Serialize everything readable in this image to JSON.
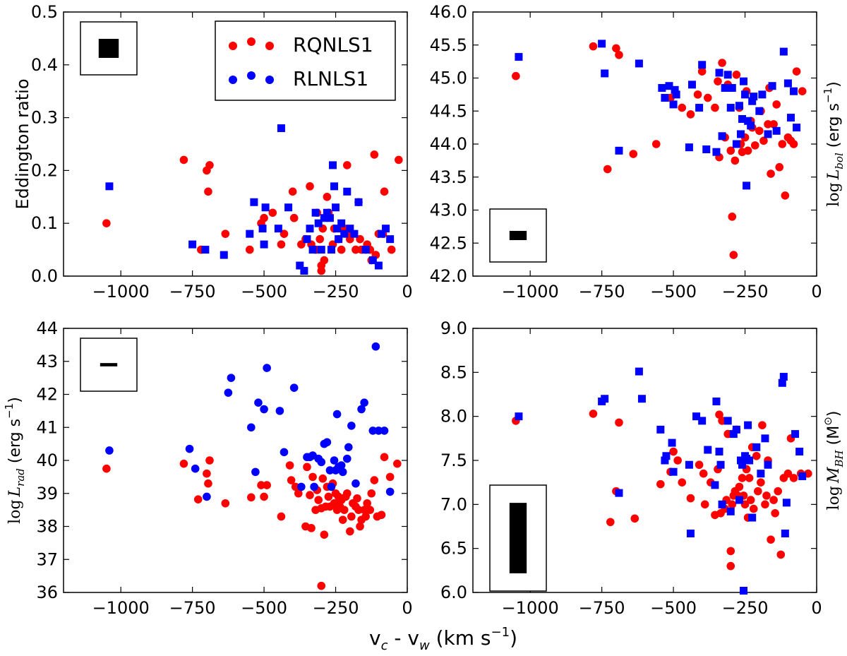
{
  "colors": {
    "rq": "#ff0000",
    "rl": "#0000ff",
    "axis": "#000000"
  },
  "xlabel_main": "v",
  "xlabel_sub1": "c",
  "xlabel_mid": " - v",
  "xlabel_sub2": "w",
  "xlabel_unit": "  (km s",
  "xlabel_exp": "−1",
  "xlabel_close": ")",
  "chart_data": [
    {
      "type": "scatter",
      "id": "eddington",
      "ylabel": "Eddington ratio",
      "xlim": [
        -1200,
        0
      ],
      "ylim": [
        0.0,
        0.5
      ],
      "xticks": [
        -1000,
        -750,
        -500,
        -250,
        0
      ],
      "yticks": [
        0.0,
        0.1,
        0.2,
        0.3,
        0.4,
        0.5
      ],
      "yfmt": 1,
      "legend": {
        "placement": "top-right",
        "entries": [
          "RQNLS1",
          "RLNLS1"
        ]
      },
      "error_box": {
        "placement": "top-left",
        "half_x": 35,
        "half_y": 0.018
      },
      "series": [
        {
          "name": "RQNLS1",
          "marker": "circle",
          "color": "#ff0000",
          "x": [
            -1050,
            -780,
            -720,
            -700,
            -695,
            -690,
            -635,
            -550,
            -510,
            -500,
            -470,
            -440,
            -430,
            -400,
            -395,
            -370,
            -355,
            -340,
            -335,
            -320,
            -315,
            -305,
            -300,
            -300,
            -295,
            -290,
            -280,
            -275,
            -260,
            -255,
            -240,
            -230,
            -220,
            -210,
            -200,
            -195,
            -180,
            -170,
            -165,
            -160,
            -145,
            -140,
            -130,
            -125,
            -115,
            -110,
            -100,
            -85,
            -80,
            -55,
            -30
          ],
          "y": [
            0.1,
            0.22,
            0.05,
            0.2,
            0.16,
            0.21,
            0.08,
            0.05,
            0.1,
            0.11,
            0.12,
            0.06,
            0.08,
            0.16,
            0.11,
            0.06,
            0.07,
            0.17,
            0.06,
            0.05,
            0.12,
            0.07,
            0.02,
            0.01,
            0.09,
            0.03,
            0.15,
            0.12,
            0.06,
            0.09,
            0.07,
            0.05,
            0.09,
            0.21,
            0.07,
            0.08,
            0.05,
            0.14,
            0.07,
            0.05,
            0.05,
            0.06,
            0.05,
            0.03,
            0.23,
            0.04,
            0.08,
            0.08,
            0.16,
            0.05,
            0.22
          ]
        },
        {
          "name": "RLNLS1",
          "marker": "square",
          "color": "#0000ff",
          "x": [
            -1040,
            -750,
            -705,
            -640,
            -550,
            -535,
            -505,
            -500,
            -495,
            -450,
            -440,
            -415,
            -375,
            -360,
            -350,
            -340,
            -330,
            -320,
            -310,
            -300,
            -290,
            -280,
            -270,
            -265,
            -260,
            -255,
            -250,
            -245,
            -240,
            -230,
            -220,
            -210,
            -200,
            -185,
            -170,
            -145,
            -120,
            -100,
            -90,
            -75,
            -60
          ],
          "y": [
            0.17,
            0.06,
            0.05,
            0.04,
            0.08,
            0.14,
            0.09,
            0.06,
            0.13,
            0.09,
            0.28,
            0.13,
            0.02,
            0.01,
            0.07,
            0.09,
            0.05,
            0.12,
            0.1,
            0.05,
            0.11,
            0.12,
            0.11,
            0.05,
            0.21,
            0.17,
            0.13,
            0.09,
            0.07,
            0.1,
            0.08,
            0.16,
            0.09,
            0.08,
            0.14,
            0.05,
            0.03,
            0.02,
            0.08,
            0.09,
            0.07
          ]
        }
      ]
    },
    {
      "type": "scatter",
      "id": "lbol",
      "ylabel": "log",
      "ylabel_var": "L",
      "ylabel_sub": "bol",
      "ylabel_unit": " (erg s",
      "ylabel_exp": "−1",
      "ylabel_close": ")",
      "xlim": [
        -1200,
        0
      ],
      "ylim": [
        42.0,
        46.0
      ],
      "xticks": [
        -1000,
        -750,
        -500,
        -250,
        0
      ],
      "yticks": [
        42.0,
        42.5,
        43.0,
        43.5,
        44.0,
        44.5,
        45.0,
        45.5,
        46.0
      ],
      "yfmt": 1,
      "error_box": {
        "placement": "bottom-left",
        "half_x": 30,
        "half_y": 0.07
      },
      "series": [
        {
          "name": "RQNLS1",
          "marker": "circle",
          "color": "#ff0000",
          "x": [
            -1050,
            -780,
            -730,
            -700,
            -690,
            -640,
            -560,
            -510,
            -470,
            -440,
            -415,
            -400,
            -380,
            -355,
            -345,
            -340,
            -330,
            -320,
            -310,
            -300,
            -295,
            -290,
            -285,
            -280,
            -270,
            -265,
            -260,
            -250,
            -245,
            -240,
            -230,
            -225,
            -215,
            -200,
            -195,
            -185,
            -170,
            -165,
            -160,
            -150,
            -140,
            -130,
            -120,
            -110,
            -100,
            -90,
            -80,
            -70,
            -50
          ],
          "y": [
            45.03,
            45.48,
            43.62,
            45.45,
            45.35,
            43.85,
            44.0,
            44.7,
            44.55,
            44.45,
            44.75,
            45.1,
            44.7,
            44.55,
            44.95,
            43.8,
            45.23,
            44.1,
            44.9,
            43.9,
            42.9,
            42.32,
            43.75,
            45.05,
            44.55,
            44.0,
            43.88,
            44.1,
            44.8,
            43.9,
            44.35,
            44.25,
            43.98,
            44.2,
            44.5,
            44.05,
            44.3,
            44.85,
            43.55,
            44.3,
            44.6,
            43.65,
            44.0,
            43.22,
            44.1,
            44.05,
            44.0,
            45.1,
            44.8
          ]
        },
        {
          "name": "RLNLS1",
          "marker": "square",
          "color": "#0000ff",
          "x": [
            -1040,
            -750,
            -740,
            -690,
            -620,
            -540,
            -530,
            -515,
            -500,
            -495,
            -490,
            -445,
            -435,
            -410,
            -400,
            -385,
            -350,
            -340,
            -330,
            -320,
            -310,
            -300,
            -295,
            -280,
            -270,
            -265,
            -260,
            -255,
            -250,
            -245,
            -240,
            -230,
            -225,
            -220,
            -200,
            -190,
            -170,
            -155,
            -140,
            -115,
            -100,
            -90,
            -80,
            -70
          ],
          "y": [
            45.32,
            45.52,
            45.07,
            43.9,
            45.22,
            44.85,
            44.7,
            44.88,
            44.6,
            44.82,
            44.75,
            43.95,
            44.9,
            44.55,
            45.2,
            43.92,
            43.88,
            45.08,
            44.12,
            44.85,
            45.05,
            44.55,
            44.85,
            44.0,
            44.58,
            44.15,
            44.38,
            44.95,
            44.75,
            43.37,
            44.35,
            44.28,
            44.65,
            44.72,
            44.5,
            44.75,
            44.15,
            44.88,
            44.2,
            45.4,
            44.92,
            44.4,
            44.8,
            44.25
          ]
        }
      ]
    },
    {
      "type": "scatter",
      "id": "lrad",
      "ylabel": "log",
      "ylabel_var": "L",
      "ylabel_sub": "rad",
      "ylabel_unit": " (erg s",
      "ylabel_exp": "−1",
      "ylabel_close": ")",
      "xlim": [
        -1200,
        0
      ],
      "ylim": [
        36,
        44
      ],
      "xticks": [
        -1000,
        -750,
        -500,
        -250,
        0
      ],
      "yticks": [
        36,
        37,
        38,
        39,
        40,
        41,
        42,
        43,
        44
      ],
      "yfmt": 0,
      "error_box": {
        "placement": "top-left",
        "half_x": 30,
        "half_y": 0.05
      },
      "series": [
        {
          "name": "RQNLS1",
          "marker": "circle",
          "color": "#ff0000",
          "x": [
            -1050,
            -780,
            -730,
            -700,
            -695,
            -690,
            -635,
            -545,
            -510,
            -500,
            -490,
            -440,
            -410,
            -405,
            -390,
            -380,
            -355,
            -350,
            -340,
            -335,
            -330,
            -320,
            -315,
            -310,
            -300,
            -300,
            -295,
            -290,
            -285,
            -280,
            -275,
            -270,
            -260,
            -255,
            -250,
            -245,
            -240,
            -235,
            -230,
            -225,
            -220,
            -215,
            -210,
            -200,
            -195,
            -190,
            -180,
            -175,
            -170,
            -165,
            -160,
            -150,
            -145,
            -140,
            -130,
            -125,
            -115,
            -105,
            -90,
            -80,
            -60,
            -35
          ],
          "y": [
            39.75,
            39.9,
            38.82,
            39.6,
            39.3,
            40.0,
            38.7,
            38.88,
            39.25,
            38.9,
            39.25,
            38.3,
            39.85,
            39.4,
            39.2,
            39.0,
            38.0,
            39.8,
            38.95,
            37.95,
            39.5,
            38.5,
            39.1,
            38.8,
            38.55,
            36.2,
            39.45,
            37.75,
            38.6,
            39.2,
            38.9,
            38.6,
            39.3,
            38.7,
            39.0,
            38.5,
            38.9,
            38.6,
            38.8,
            38.2,
            38.5,
            38.9,
            39.0,
            37.85,
            38.3,
            38.7,
            38.6,
            38.85,
            38.5,
            38.0,
            38.2,
            38.5,
            38.3,
            38.7,
            38.5,
            39.0,
            39.4,
            38.3,
            38.35,
            40.1,
            39.5,
            39.9
          ]
        },
        {
          "name": "RLNLS1",
          "marker": "circle",
          "color": "#0000ff",
          "x": [
            -1040,
            -760,
            -740,
            -700,
            -625,
            -615,
            -545,
            -530,
            -520,
            -500,
            -490,
            -445,
            -430,
            -395,
            -370,
            -350,
            -340,
            -330,
            -325,
            -310,
            -300,
            -290,
            -280,
            -270,
            -265,
            -255,
            -250,
            -245,
            -240,
            -230,
            -225,
            -210,
            -205,
            -195,
            -180,
            -160,
            -150,
            -120,
            -110,
            -100,
            -80,
            -60
          ],
          "y": [
            40.3,
            40.35,
            39.75,
            38.9,
            42.05,
            42.5,
            41.0,
            39.65,
            41.75,
            41.55,
            42.8,
            41.5,
            40.25,
            42.2,
            39.2,
            40.1,
            40.1,
            40.15,
            39.2,
            40.05,
            39.95,
            40.5,
            40.55,
            39.7,
            39.2,
            40.0,
            39.7,
            41.4,
            39.8,
            39.85,
            39.65,
            40.05,
            40.4,
            41.05,
            39.3,
            41.55,
            41.75,
            40.9,
            43.45,
            40.9,
            40.9,
            39.05
          ]
        }
      ]
    },
    {
      "type": "scatter",
      "id": "mbh",
      "ylabel": "log",
      "ylabel_var": "M",
      "ylabel_sub": "BH",
      "ylabel_unit": " (M",
      "ylabel_exp": "⊙",
      "ylabel_close": ")",
      "xlim": [
        -1200,
        0
      ],
      "ylim": [
        6.0,
        9.0
      ],
      "xticks": [
        -1000,
        -750,
        -500,
        -250,
        0
      ],
      "yticks": [
        6.0,
        6.5,
        7.0,
        7.5,
        8.0,
        8.5,
        9.0
      ],
      "yfmt": 1,
      "error_box": {
        "placement": "bottom-left",
        "half_x": 30,
        "half_y": 0.4
      },
      "series": [
        {
          "name": "RQNLS1",
          "marker": "circle",
          "color": "#ff0000",
          "x": [
            -1050,
            -780,
            -720,
            -700,
            -690,
            -635,
            -545,
            -510,
            -500,
            -485,
            -470,
            -440,
            -410,
            -395,
            -390,
            -370,
            -355,
            -345,
            -340,
            -335,
            -330,
            -320,
            -315,
            -310,
            -300,
            -300,
            -295,
            -290,
            -285,
            -280,
            -275,
            -270,
            -260,
            -255,
            -250,
            -245,
            -240,
            -235,
            -230,
            -225,
            -220,
            -210,
            -205,
            -195,
            -190,
            -180,
            -175,
            -170,
            -160,
            -150,
            -145,
            -135,
            -125,
            -115,
            -100,
            -90,
            -80,
            -55,
            -30
          ],
          "y": [
            7.95,
            8.03,
            6.8,
            7.15,
            7.93,
            6.84,
            7.23,
            7.37,
            7.6,
            7.5,
            7.25,
            7.07,
            7.45,
            7.35,
            7.0,
            7.25,
            6.88,
            7.4,
            8.02,
            6.9,
            7.95,
            6.95,
            7.05,
            7.8,
            6.47,
            6.3,
            7.0,
            7.1,
            7.15,
            7.85,
            7.1,
            7.2,
            7.3,
            7.1,
            7.0,
            7.4,
            6.85,
            7.3,
            7.05,
            7.65,
            6.95,
            7.55,
            7.15,
            7.25,
            7.9,
            7.0,
            7.1,
            7.5,
            6.6,
            7.05,
            6.9,
            7.15,
            6.43,
            7.3,
            7.35,
            7.75,
            7.3,
            7.35,
            7.35
          ]
        },
        {
          "name": "RLNLS1",
          "marker": "square",
          "color": "#0000ff",
          "x": [
            -1040,
            -750,
            -740,
            -690,
            -620,
            -610,
            -545,
            -530,
            -525,
            -505,
            -500,
            -445,
            -440,
            -420,
            -400,
            -380,
            -355,
            -350,
            -340,
            -335,
            -330,
            -310,
            -300,
            -290,
            -280,
            -270,
            -265,
            -260,
            -255,
            -250,
            -245,
            -240,
            -235,
            -225,
            -210,
            -195,
            -180,
            -170,
            -120,
            -115,
            -110,
            -105,
            -75,
            -60,
            -50
          ],
          "y": [
            8.0,
            8.17,
            8.2,
            7.13,
            8.51,
            8.2,
            7.85,
            7.5,
            7.55,
            7.7,
            7.37,
            7.45,
            6.67,
            8.0,
            7.95,
            7.62,
            7.22,
            8.17,
            7.6,
            7.45,
            7.0,
            7.95,
            6.92,
            7.8,
            7.85,
            7.05,
            7.5,
            7.45,
            6.02,
            7.55,
            7.52,
            7.9,
            7.5,
            6.85,
            7.65,
            7.35,
            7.75,
            7.45,
            8.38,
            8.45,
            6.67,
            7.02,
            7.8,
            7.6,
            7.32
          ]
        }
      ]
    }
  ]
}
